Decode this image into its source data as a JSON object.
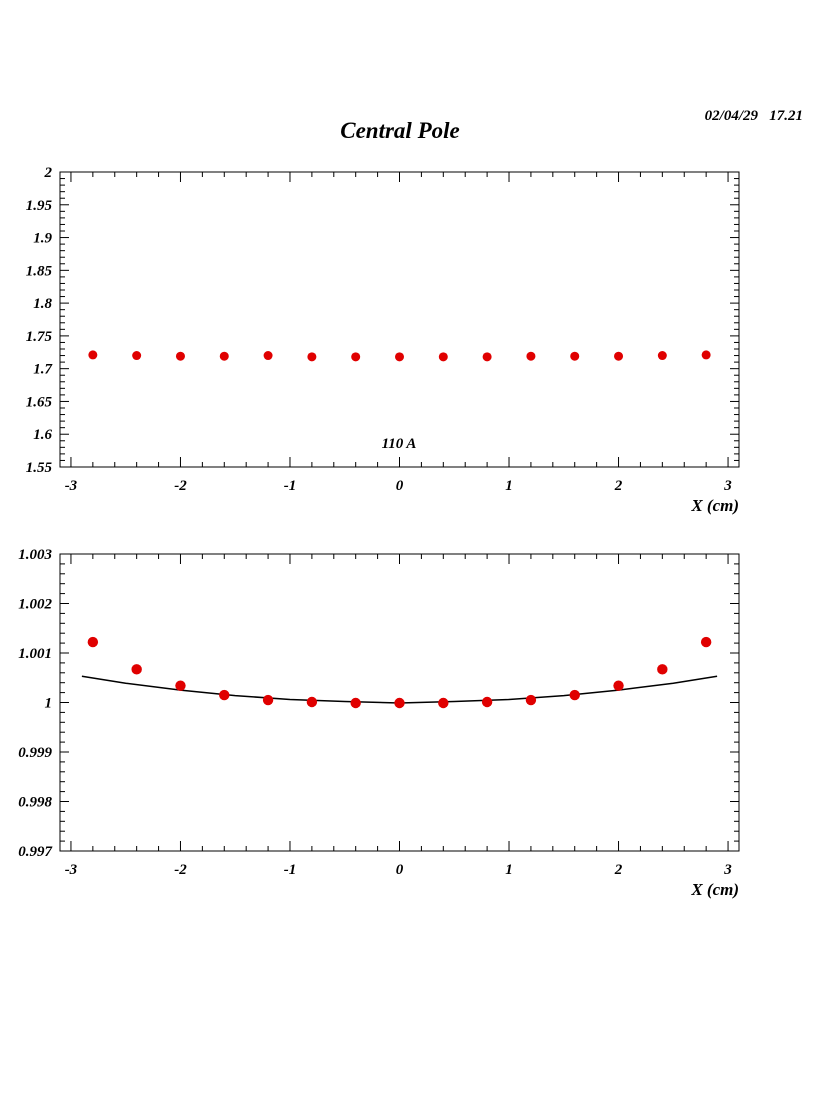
{
  "header": {
    "title": "Central Pole",
    "timestamp": "02/04/29   17.21"
  },
  "colors": {
    "marker": "#e00000",
    "fit_line": "#000000",
    "axes": "#000000",
    "background": "#ffffff"
  },
  "chart_data": [
    {
      "type": "scatter",
      "title": "",
      "annotation": "110 A",
      "xlabel": "X (cm)",
      "ylabel": "",
      "xlim": [
        -3.1,
        3.1
      ],
      "ylim": [
        1.55,
        2.0
      ],
      "xticks": [
        "-3",
        "-2",
        "-1",
        "0",
        "1",
        "2",
        "3"
      ],
      "yticks": [
        "1.55",
        "1.6",
        "1.65",
        "1.7",
        "1.75",
        "1.8",
        "1.85",
        "1.9",
        "1.95",
        "2"
      ],
      "grid": false,
      "series": [
        {
          "x": [
            -2.8,
            -2.4,
            -2.0,
            -1.6,
            -1.2,
            -0.8,
            -0.4,
            0.0,
            0.4,
            0.8,
            1.2,
            1.6,
            2.0,
            2.4,
            2.8
          ],
          "y": [
            1.721,
            1.72,
            1.719,
            1.719,
            1.72,
            1.718,
            1.718,
            1.718,
            1.718,
            1.718,
            1.719,
            1.719,
            1.719,
            1.72,
            1.721
          ]
        }
      ]
    },
    {
      "type": "scatter",
      "title": "",
      "xlabel": "X (cm)",
      "ylabel": "",
      "xlim": [
        -3.1,
        3.1
      ],
      "ylim": [
        0.997,
        1.003
      ],
      "xticks": [
        "-3",
        "-2",
        "-1",
        "0",
        "1",
        "2",
        "3"
      ],
      "yticks": [
        "0.997",
        "0.998",
        "0.999",
        "1",
        "1.001",
        "1.002",
        "1.003"
      ],
      "grid": false,
      "series": [
        {
          "x": [
            -2.8,
            -2.4,
            -2.0,
            -1.6,
            -1.2,
            -0.8,
            -0.4,
            0.0,
            0.4,
            0.8,
            1.2,
            1.6,
            2.0,
            2.4,
            2.8
          ],
          "y": [
            1.00122,
            1.00067,
            1.00034,
            1.00015,
            1.00005,
            1.00001,
            0.99999,
            0.99999,
            0.99999,
            1.00001,
            1.00005,
            1.00015,
            1.00034,
            1.00067,
            1.00122
          ]
        }
      ],
      "fit_curve": {
        "x": [
          -2.9,
          -2.5,
          -2.0,
          -1.5,
          -1.0,
          -0.5,
          0.0,
          0.5,
          1.0,
          1.5,
          2.0,
          2.5,
          2.9
        ],
        "y": [
          1.00053,
          1.00039,
          1.00025,
          1.00014,
          1.00006,
          1.00002,
          0.99999,
          1.00002,
          1.00006,
          1.00014,
          1.00025,
          1.00039,
          1.00053
        ]
      }
    }
  ]
}
